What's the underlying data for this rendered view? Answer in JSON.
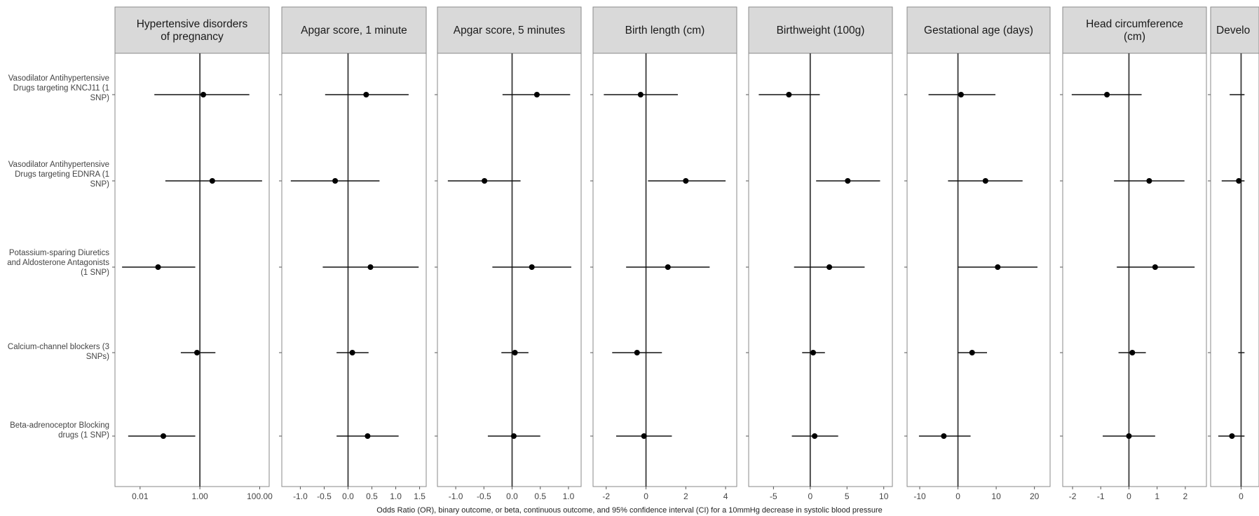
{
  "chart_data": {
    "type": "forest",
    "xlabel": "Odds Ratio (OR), binary outcome, or beta, continuous outcome, and 95% confidence interval (CI) for a 10mmHg decrease in systolic blood pressure",
    "rows": [
      "Vasodilator Antihypertensive Drugs targeting KNCJ11 (1 SNP)",
      "Vasodilator Antihypertensive Drugs targeting EDNRA (1 SNP)",
      "Potassium-sparing Diuretics and Aldosterone Antagonists (1 SNP)",
      "Calcium-channel blockers (3 SNPs)",
      "Beta-adrenoceptor Blocking drugs (1 SNP)"
    ],
    "panels": [
      {
        "title": "Hypertensive disorders of pregnancy",
        "scale": "log10",
        "ref": 1,
        "xlim": [
          0.002,
          150
        ],
        "ticks": [
          0.01,
          1,
          100
        ],
        "tick_labels": [
          "0.01",
          "1.00",
          "100.00"
        ],
        "points": [
          {
            "est": 1.3,
            "lo": 0.03,
            "hi": 45
          },
          {
            "est": 2.6,
            "lo": 0.07,
            "hi": 120
          },
          {
            "est": 0.04,
            "lo": 0.0025,
            "hi": 0.7
          },
          {
            "est": 0.8,
            "lo": 0.23,
            "hi": 3.3
          },
          {
            "est": 0.06,
            "lo": 0.004,
            "hi": 0.7
          }
        ]
      },
      {
        "title": "Apgar score, 1 minute",
        "scale": "linear",
        "ref": 0,
        "xlim": [
          -1.3,
          1.55
        ],
        "ticks": [
          -1.0,
          -0.5,
          0.0,
          0.5,
          1.0,
          1.5
        ],
        "tick_labels": [
          "-1.0",
          "-0.5",
          "0.0",
          "0.5",
          "1.0",
          "1.5"
        ],
        "points": [
          {
            "est": 0.38,
            "lo": -0.48,
            "hi": 1.27
          },
          {
            "est": -0.27,
            "lo": -1.2,
            "hi": 0.66
          },
          {
            "est": 0.47,
            "lo": -0.53,
            "hi": 1.48
          },
          {
            "est": 0.09,
            "lo": -0.24,
            "hi": 0.43
          },
          {
            "est": 0.41,
            "lo": -0.24,
            "hi": 1.06
          }
        ]
      },
      {
        "title": "Apgar score, 5 minutes",
        "scale": "linear",
        "ref": 0,
        "xlim": [
          -1.25,
          1.15
        ],
        "ticks": [
          -1.0,
          -0.5,
          0.0,
          0.5,
          1.0
        ],
        "tick_labels": [
          "-1.0",
          "-0.5",
          "0.0",
          "0.5",
          "1.0"
        ],
        "points": [
          {
            "est": 0.44,
            "lo": -0.17,
            "hi": 1.03
          },
          {
            "est": -0.49,
            "lo": -1.14,
            "hi": 0.15
          },
          {
            "est": 0.35,
            "lo": -0.35,
            "hi": 1.05
          },
          {
            "est": 0.05,
            "lo": -0.19,
            "hi": 0.29
          },
          {
            "est": 0.03,
            "lo": -0.43,
            "hi": 0.5
          }
        ]
      },
      {
        "title": "Birth length (cm)",
        "scale": "linear",
        "ref": 0,
        "xlim": [
          -2.45,
          4.35
        ],
        "ticks": [
          -2,
          0,
          2,
          4
        ],
        "tick_labels": [
          "-2",
          "0",
          "2",
          "4"
        ],
        "points": [
          {
            "est": -0.27,
            "lo": -2.12,
            "hi": 1.6
          },
          {
            "est": 2.0,
            "lo": 0.1,
            "hi": 4.0
          },
          {
            "est": 1.1,
            "lo": -1.0,
            "hi": 3.2
          },
          {
            "est": -0.45,
            "lo": -1.7,
            "hi": 0.8
          },
          {
            "est": -0.1,
            "lo": -1.5,
            "hi": 1.3
          }
        ]
      },
      {
        "title": "Birthweight (100g)",
        "scale": "linear",
        "ref": 0,
        "xlim": [
          -7.8,
          10.6
        ],
        "ticks": [
          -5,
          0,
          5,
          10
        ],
        "tick_labels": [
          "-5",
          "0",
          "5",
          "10"
        ],
        "points": [
          {
            "est": -2.9,
            "lo": -7.0,
            "hi": 1.3
          },
          {
            "est": 5.1,
            "lo": 0.8,
            "hi": 9.5
          },
          {
            "est": 2.6,
            "lo": -2.2,
            "hi": 7.4
          },
          {
            "est": 0.4,
            "lo": -1.1,
            "hi": 2.0
          },
          {
            "est": 0.6,
            "lo": -2.5,
            "hi": 3.8
          }
        ]
      },
      {
        "title": "Gestational age (days)",
        "scale": "linear",
        "ref": 0,
        "xlim": [
          -12.2,
          23
        ],
        "ticks": [
          -10,
          0,
          10,
          20
        ],
        "tick_labels": [
          "-10",
          "0",
          "10",
          "20"
        ],
        "points": [
          {
            "est": 0.8,
            "lo": -7.7,
            "hi": 9.8
          },
          {
            "est": 7.2,
            "lo": -2.6,
            "hi": 16.9
          },
          {
            "est": 10.4,
            "lo": 0.0,
            "hi": 20.8
          },
          {
            "est": 3.7,
            "lo": 0.0,
            "hi": 7.6
          },
          {
            "est": -3.7,
            "lo": -10.2,
            "hi": 3.3
          }
        ]
      },
      {
        "title": "Head circumference (cm)",
        "scale": "linear",
        "ref": 0,
        "xlim": [
          -2.2,
          2.6
        ],
        "ticks": [
          -2,
          -1,
          0,
          1,
          2
        ],
        "tick_labels": [
          "-2",
          "-1",
          "0",
          "1",
          "2"
        ],
        "points": [
          {
            "est": -0.78,
            "lo": -2.03,
            "hi": 0.45
          },
          {
            "est": 0.72,
            "lo": -0.53,
            "hi": 1.97
          },
          {
            "est": 0.93,
            "lo": -0.43,
            "hi": 2.33
          },
          {
            "est": 0.12,
            "lo": -0.37,
            "hi": 0.6
          },
          {
            "est": 0.0,
            "lo": -0.93,
            "hi": 0.93
          }
        ]
      },
      {
        "title": "Develo",
        "scale": "linear",
        "ref": 0,
        "xlim": [
          -2.3,
          1.2
        ],
        "ticks": [
          0
        ],
        "tick_labels": [
          "0"
        ],
        "points": [
          {
            "est": null,
            "lo": -1.0,
            "hi": 0.3
          },
          {
            "est": -0.2,
            "lo": -1.7,
            "hi": 0.3
          },
          null,
          {
            "est": null,
            "lo": -0.25,
            "hi": 0.3
          },
          {
            "est": -0.8,
            "lo": -2.0,
            "hi": 0.3
          }
        ]
      }
    ]
  }
}
